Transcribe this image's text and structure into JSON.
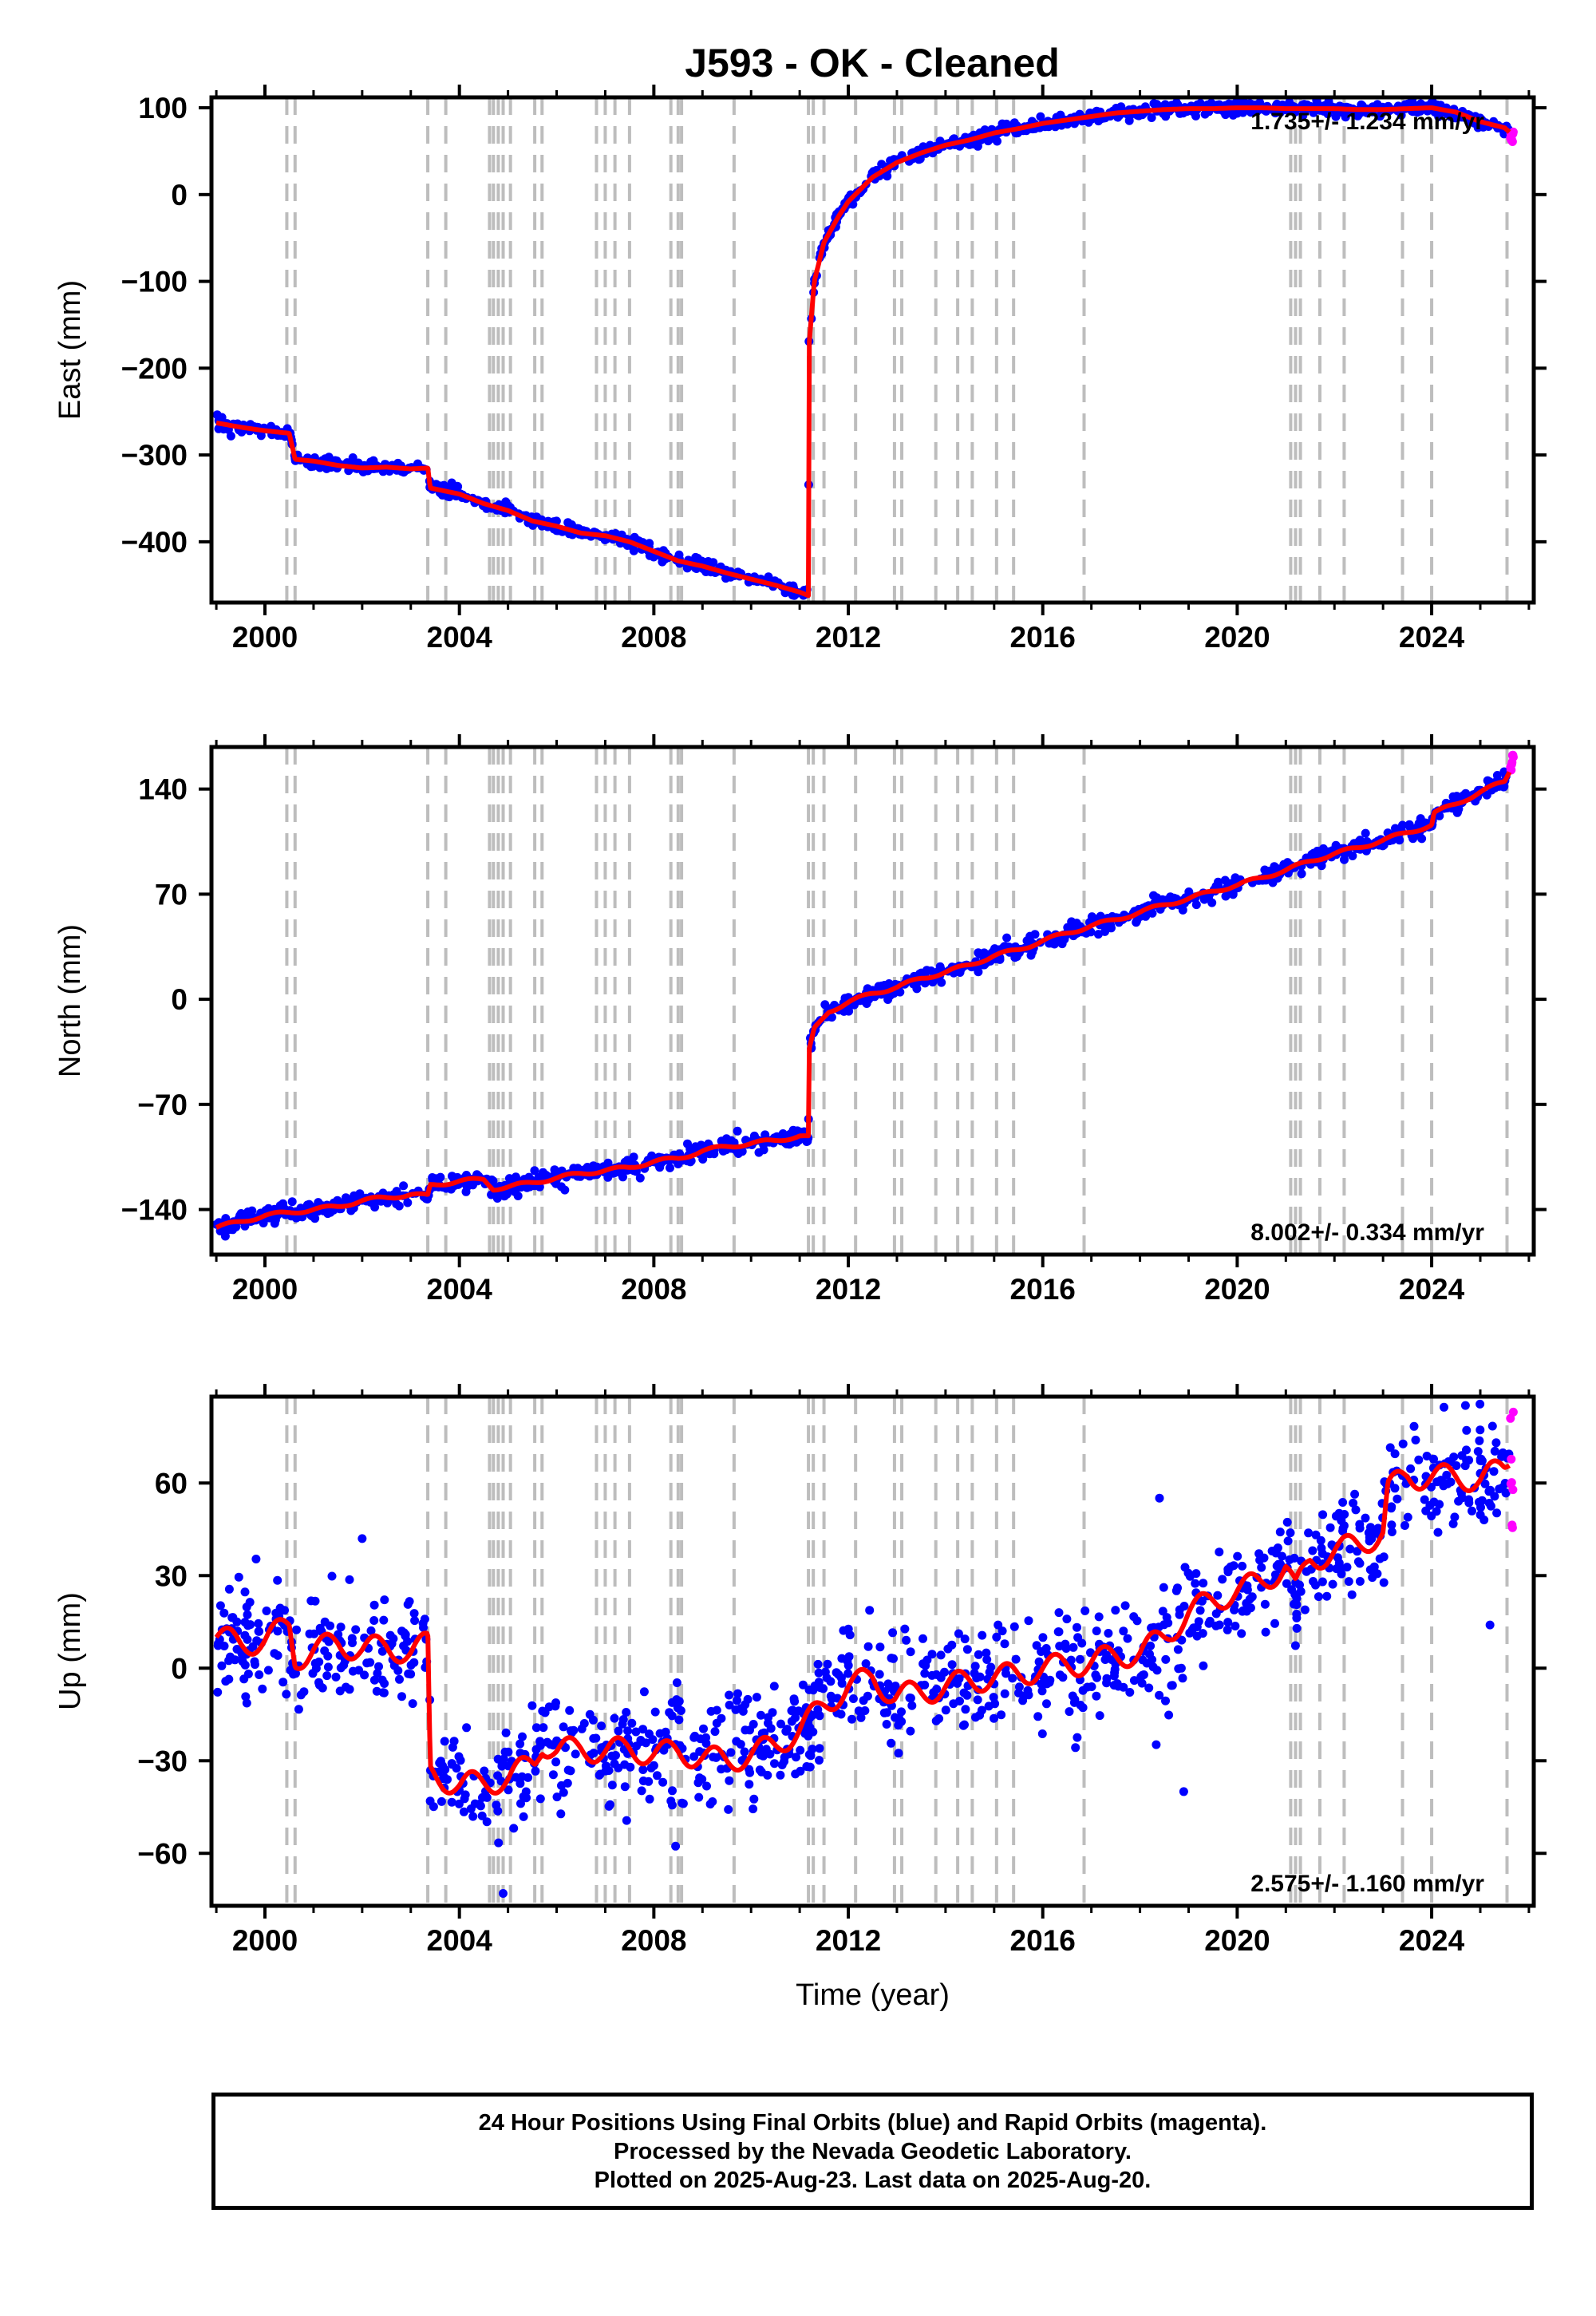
{
  "figure": {
    "title": "J593  - OK - Cleaned"
  },
  "event_lines": [
    2000.45,
    2000.62,
    2003.35,
    2003.72,
    2004.62,
    2004.7,
    2004.8,
    2004.9,
    2005.05,
    2005.55,
    2005.7,
    2006.82,
    2007.0,
    2007.2,
    2007.5,
    2008.35,
    2008.5,
    2008.57,
    2009.65,
    2011.18,
    2011.28,
    2011.5,
    2012.15,
    2012.95,
    2013.1,
    2013.8,
    2014.25,
    2014.55,
    2015.05,
    2015.4,
    2016.85,
    2021.1,
    2021.2,
    2021.3,
    2021.7,
    2022.2,
    2023.4,
    2024.0,
    2025.55
  ],
  "chart_data": [
    {
      "type": "scatter",
      "panel": "east",
      "ylabel": "East (mm)",
      "xlim": [
        1998.9,
        2026.1
      ],
      "ylim": [
        -470,
        112
      ],
      "xticks": [
        2000,
        2004,
        2008,
        2012,
        2016,
        2020,
        2024
      ],
      "xtick_labels": [
        "2000",
        "2004",
        "2008",
        "2012",
        "2016",
        "2020",
        "2024"
      ],
      "yticks": [
        100,
        0,
        -100,
        -200,
        -300,
        -400
      ],
      "ytick_labels": [
        "100",
        "0",
        "−100",
        "−200",
        "−300",
        "−400"
      ],
      "rate_label": "1.735+/- 1.234 mm/yr",
      "rate_position": "top-right",
      "series": [
        {
          "name": "Final Orbits",
          "color": "#0000ff",
          "noise": 3.5,
          "x": [
            1999.0,
            1999.5,
            2000.0,
            2000.5,
            2000.62,
            2001.0,
            2001.5,
            2002.0,
            2002.5,
            2003.0,
            2003.35,
            2003.4,
            2004.0,
            2004.5,
            2005.0,
            2005.5,
            2006.0,
            2006.5,
            2007.0,
            2007.5,
            2008.0,
            2008.5,
            2009.0,
            2009.5,
            2010.0,
            2010.5,
            2011.0,
            2011.18,
            2011.19,
            2011.3,
            2011.5,
            2011.8,
            2012.0,
            2012.5,
            2013.0,
            2013.5,
            2014.0,
            2014.5,
            2015.0,
            2015.5,
            2016.0,
            2016.5,
            2017.0,
            2017.5,
            2018.0,
            2018.5,
            2019.0,
            2019.5,
            2020.0,
            2020.5,
            2021.0,
            2021.5,
            2022.0,
            2022.5,
            2023.0,
            2023.5,
            2024.0,
            2024.5,
            2025.0,
            2025.5,
            2025.6
          ],
          "y": [
            -263,
            -268,
            -272,
            -275,
            -305,
            -307,
            -312,
            -315,
            -314,
            -316,
            -315,
            -338,
            -345,
            -356,
            -364,
            -376,
            -382,
            -390,
            -393,
            -400,
            -411,
            -422,
            -428,
            -436,
            -443,
            -450,
            -458,
            -462,
            -175,
            -100,
            -55,
            -25,
            -8,
            20,
            37,
            48,
            57,
            63,
            71,
            76,
            82,
            86,
            90,
            94,
            96,
            98,
            99,
            99,
            100,
            100,
            99,
            99,
            99,
            98,
            98,
            99,
            100,
            95,
            84,
            77,
            72
          ]
        },
        {
          "name": "Rapid Orbits",
          "color": "#ff00ff",
          "noise": 3,
          "x": [
            2025.62,
            2025.64,
            2025.66,
            2025.68
          ],
          "y": [
            70,
            66,
            63,
            68
          ]
        },
        {
          "name": "Model",
          "color": "#ff0000",
          "x": [
            1999.0,
            1999.5,
            2000.0,
            2000.5,
            2000.62,
            2001.0,
            2001.5,
            2002.0,
            2002.5,
            2003.0,
            2003.35,
            2003.4,
            2004.0,
            2004.5,
            2005.0,
            2005.5,
            2006.0,
            2006.5,
            2007.0,
            2007.5,
            2008.0,
            2008.5,
            2009.0,
            2009.5,
            2010.0,
            2010.5,
            2011.0,
            2011.18,
            2011.19,
            2011.3,
            2011.5,
            2011.8,
            2012.0,
            2012.5,
            2013.0,
            2013.5,
            2014.0,
            2014.5,
            2015.0,
            2015.5,
            2016.0,
            2016.5,
            2017.0,
            2017.5,
            2018.0,
            2018.5,
            2019.0,
            2019.5,
            2020.0,
            2020.5,
            2021.0,
            2021.5,
            2022.0,
            2022.5,
            2023.0,
            2023.5,
            2024.0,
            2024.5,
            2025.0,
            2025.5,
            2025.6
          ],
          "y": [
            -263,
            -268,
            -272,
            -275,
            -305,
            -307,
            -312,
            -315,
            -314,
            -316,
            -315,
            -338,
            -345,
            -356,
            -364,
            -376,
            -382,
            -390,
            -393,
            -400,
            -411,
            -422,
            -428,
            -436,
            -443,
            -450,
            -458,
            -462,
            -175,
            -100,
            -55,
            -25,
            -8,
            20,
            37,
            48,
            57,
            63,
            71,
            76,
            82,
            86,
            90,
            94,
            96,
            98,
            99,
            99,
            100,
            100,
            99,
            99,
            99,
            98,
            98,
            99,
            100,
            95,
            84,
            77,
            72
          ]
        }
      ]
    },
    {
      "type": "scatter",
      "panel": "north",
      "ylabel": "North (mm)",
      "xlim": [
        1998.9,
        2026.1
      ],
      "ylim": [
        -170,
        168
      ],
      "xticks": [
        2000,
        2004,
        2008,
        2012,
        2016,
        2020,
        2024
      ],
      "xtick_labels": [
        "2000",
        "2004",
        "2008",
        "2012",
        "2016",
        "2020",
        "2024"
      ],
      "yticks": [
        140,
        70,
        0,
        -70,
        -140
      ],
      "ytick_labels": [
        "140",
        "70",
        "0",
        "−70",
        "−140"
      ],
      "rate_label": "8.002+/- 0.334 mm/yr",
      "rate_position": "bottom-right",
      "series": [
        {
          "name": "Final Orbits",
          "color": "#0000ff",
          "noise": 2.8,
          "x": [
            1999.0,
            1999.5,
            2000.0,
            2000.5,
            2001.0,
            2001.5,
            2002.0,
            2002.5,
            2003.0,
            2003.35,
            2003.4,
            2004.0,
            2004.5,
            2004.7,
            2005.0,
            2005.5,
            2006.0,
            2006.5,
            2007.0,
            2007.5,
            2008.0,
            2008.5,
            2009.0,
            2009.5,
            2010.0,
            2010.5,
            2011.0,
            2011.18,
            2011.19,
            2011.3,
            2011.6,
            2012.0,
            2012.5,
            2013.0,
            2013.5,
            2014.0,
            2014.5,
            2015.0,
            2015.5,
            2016.0,
            2016.5,
            2017.0,
            2017.5,
            2018.0,
            2018.5,
            2019.0,
            2019.5,
            2020.0,
            2020.5,
            2021.0,
            2021.5,
            2022.0,
            2022.5,
            2023.0,
            2023.5,
            2024.0,
            2024.05,
            2024.5,
            2025.0,
            2025.5,
            2025.6
          ],
          "y": [
            -152,
            -148,
            -144,
            -142,
            -140,
            -138,
            -134,
            -132,
            -130,
            -131,
            -124,
            -121,
            -120,
            -126,
            -125,
            -122,
            -119,
            -116,
            -114,
            -112,
            -108,
            -106,
            -101,
            -98,
            -96,
            -94,
            -91,
            -92,
            -35,
            -20,
            -8,
            -2,
            4,
            8,
            14,
            18,
            23,
            29,
            33,
            39,
            44,
            49,
            53,
            58,
            63,
            67,
            72,
            76,
            81,
            86,
            92,
            97,
            101,
            106,
            111,
            116,
            124,
            130,
            138,
            145,
            152
          ]
        },
        {
          "name": "Rapid Orbits",
          "color": "#ff00ff",
          "noise": 2,
          "x": [
            2025.62,
            2025.64,
            2025.66,
            2025.68
          ],
          "y": [
            153,
            156,
            160,
            162
          ]
        },
        {
          "name": "Model",
          "color": "#ff0000",
          "x": [
            1999.0,
            1999.5,
            2000.0,
            2000.5,
            2001.0,
            2001.5,
            2002.0,
            2002.5,
            2003.0,
            2003.35,
            2003.4,
            2004.0,
            2004.5,
            2004.7,
            2005.0,
            2005.5,
            2006.0,
            2006.5,
            2007.0,
            2007.5,
            2008.0,
            2008.5,
            2009.0,
            2009.5,
            2010.0,
            2010.5,
            2011.0,
            2011.18,
            2011.19,
            2011.3,
            2011.6,
            2012.0,
            2012.5,
            2013.0,
            2013.5,
            2014.0,
            2014.5,
            2015.0,
            2015.5,
            2016.0,
            2016.5,
            2017.0,
            2017.5,
            2018.0,
            2018.5,
            2019.0,
            2019.5,
            2020.0,
            2020.5,
            2021.0,
            2021.5,
            2022.0,
            2022.5,
            2023.0,
            2023.5,
            2024.0,
            2024.05,
            2024.5,
            2025.0,
            2025.5,
            2025.6
          ],
          "y": [
            -152,
            -148,
            -144,
            -142,
            -140,
            -138,
            -134,
            -132,
            -130,
            -131,
            -124,
            -121,
            -120,
            -126,
            -125,
            -122,
            -119,
            -116,
            -114,
            -112,
            -108,
            -106,
            -101,
            -98,
            -96,
            -94,
            -91,
            -92,
            -35,
            -20,
            -8,
            -2,
            4,
            8,
            14,
            18,
            23,
            29,
            33,
            39,
            44,
            49,
            53,
            58,
            63,
            67,
            72,
            76,
            81,
            86,
            92,
            97,
            101,
            106,
            111,
            116,
            124,
            130,
            138,
            145,
            152
          ]
        }
      ]
    },
    {
      "type": "scatter",
      "panel": "up",
      "ylabel": "Up (mm)",
      "xlim": [
        1998.9,
        2026.1
      ],
      "ylim": [
        -77,
        88
      ],
      "xticks": [
        2000,
        2004,
        2008,
        2012,
        2016,
        2020,
        2024
      ],
      "xtick_labels": [
        "2000",
        "2004",
        "2008",
        "2012",
        "2016",
        "2020",
        "2024"
      ],
      "yticks": [
        60,
        30,
        0,
        -30,
        -60
      ],
      "ytick_labels": [
        "60",
        "30",
        "0",
        "−30",
        "−60"
      ],
      "xlabel": "Time (year)",
      "rate_label": "2.575+/- 1.160 mm/yr",
      "rate_position": "bottom-right",
      "series": [
        {
          "name": "Final Orbits",
          "color": "#0000ff",
          "noise": 9,
          "x": [
            1999.0,
            1999.5,
            2000.0,
            2000.5,
            2000.62,
            2001.0,
            2001.5,
            2002.0,
            2002.5,
            2003.0,
            2003.35,
            2003.4,
            2004.0,
            2004.5,
            2005.0,
            2005.55,
            2005.7,
            2006.0,
            2006.5,
            2007.0,
            2007.5,
            2008.0,
            2008.5,
            2009.0,
            2009.5,
            2010.0,
            2010.5,
            2011.0,
            2011.5,
            2012.0,
            2012.5,
            2012.95,
            2013.5,
            2014.0,
            2014.5,
            2015.0,
            2015.5,
            2016.0,
            2016.5,
            2017.0,
            2017.5,
            2018.0,
            2018.5,
            2019.0,
            2019.5,
            2020.0,
            2020.5,
            2021.0,
            2021.2,
            2021.5,
            2022.0,
            2022.5,
            2023.0,
            2023.1,
            2023.5,
            2024.0,
            2024.5,
            2025.0,
            2025.5,
            2025.6
          ],
          "y": [
            10,
            8,
            9,
            14,
            3,
            6,
            8,
            6,
            7,
            5,
            8,
            -34,
            -38,
            -37,
            -36,
            -30,
            -24,
            -27,
            -26,
            -27,
            -26,
            -28,
            -27,
            -29,
            -30,
            -28,
            -25,
            -20,
            -12,
            -6,
            -3,
            -9,
            -8,
            -6,
            -4,
            -3,
            -2,
            0,
            1,
            2,
            4,
            5,
            10,
            18,
            22,
            25,
            28,
            33,
            25,
            35,
            38,
            40,
            44,
            58,
            62,
            62,
            62,
            61,
            65,
            68
          ]
        },
        {
          "name": "Rapid Orbits",
          "color": "#ff00ff",
          "noise": 8,
          "x": [
            2025.62,
            2025.64,
            2025.66,
            2025.68
          ],
          "y": [
            75,
            62,
            50,
            70
          ]
        },
        {
          "name": "Model",
          "color": "#ff0000",
          "x": [
            1999.0,
            1999.5,
            2000.0,
            2000.5,
            2000.62,
            2001.0,
            2001.5,
            2002.0,
            2002.5,
            2003.0,
            2003.35,
            2003.4,
            2004.0,
            2004.5,
            2005.0,
            2005.55,
            2005.7,
            2006.0,
            2006.5,
            2007.0,
            2007.5,
            2008.0,
            2008.5,
            2009.0,
            2009.5,
            2010.0,
            2010.5,
            2011.0,
            2011.5,
            2012.0,
            2012.5,
            2012.95,
            2013.5,
            2014.0,
            2014.5,
            2015.0,
            2015.5,
            2016.0,
            2016.5,
            2017.0,
            2017.5,
            2018.0,
            2018.5,
            2019.0,
            2019.5,
            2020.0,
            2020.5,
            2021.0,
            2021.2,
            2021.5,
            2022.0,
            2022.5,
            2023.0,
            2023.1,
            2023.5,
            2024.0,
            2024.5,
            2025.0,
            2025.5,
            2025.6
          ],
          "y": [
            10,
            8,
            9,
            14,
            3,
            6,
            8,
            6,
            7,
            5,
            8,
            -34,
            -38,
            -37,
            -36,
            -30,
            -24,
            -27,
            -26,
            -27,
            -26,
            -28,
            -27,
            -29,
            -30,
            -28,
            -25,
            -20,
            -12,
            -6,
            -3,
            -9,
            -8,
            -6,
            -4,
            -3,
            -2,
            0,
            1,
            2,
            4,
            5,
            10,
            18,
            22,
            25,
            28,
            33,
            25,
            35,
            38,
            40,
            44,
            58,
            62,
            62,
            62,
            61,
            65,
            68
          ]
        }
      ]
    }
  ],
  "caption": {
    "line1": "24 Hour Positions Using Final Orbits (blue) and Rapid Orbits (magenta).",
    "line2": "Processed by the Nevada Geodetic Laboratory.",
    "line3": "Plotted on 2025-Aug-23. Last data on 2025-Aug-20."
  }
}
